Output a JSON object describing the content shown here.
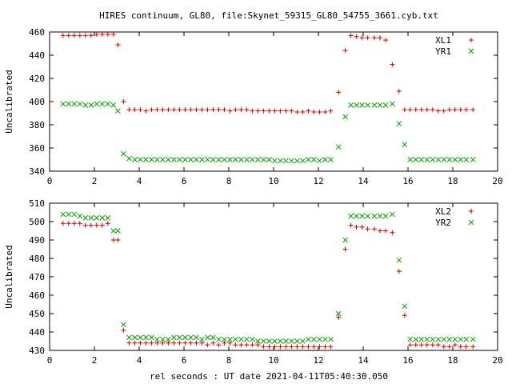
{
  "figure": {
    "title": "HIRES continuum, GL80, file:Skynet_59315_GL80_54755_3661.cyb.txt",
    "xlabel": "rel seconds : UT date 2021-04-11T05:40:30.050"
  },
  "colors": {
    "red": "#cc0000",
    "green": "#00a000",
    "axis": "#000000"
  },
  "chart_data": [
    {
      "type": "scatter",
      "title": "HIRES continuum, GL80, file:Skynet_59315_GL80_54755_3661.cyb.txt",
      "xlabel": "",
      "ylabel": "Uncalibrated",
      "xlim": [
        0,
        20
      ],
      "ylim": [
        340,
        460
      ],
      "xticks": [
        0,
        2,
        4,
        6,
        8,
        10,
        12,
        14,
        16,
        18,
        20
      ],
      "yticks": [
        340,
        360,
        380,
        400,
        420,
        440,
        460
      ],
      "grid": false,
      "legend_position": "top-right",
      "x": [
        0.6,
        0.85,
        1.1,
        1.35,
        1.6,
        1.85,
        2.1,
        2.35,
        2.6,
        2.85,
        3.05,
        3.3,
        3.55,
        3.8,
        4.05,
        4.3,
        4.55,
        4.8,
        5.05,
        5.3,
        5.55,
        5.8,
        6.05,
        6.3,
        6.55,
        6.8,
        7.05,
        7.3,
        7.55,
        7.8,
        8.05,
        8.3,
        8.55,
        8.8,
        9.05,
        9.3,
        9.55,
        9.8,
        10.05,
        10.3,
        10.55,
        10.8,
        11.05,
        11.3,
        11.55,
        11.8,
        12.05,
        12.3,
        12.55,
        12.9,
        13.2,
        13.45,
        13.7,
        13.95,
        14.2,
        14.5,
        14.75,
        15.0,
        15.3,
        15.6,
        15.85,
        16.1,
        16.35,
        16.6,
        16.85,
        17.1,
        17.35,
        17.6,
        17.85,
        18.1,
        18.35,
        18.6,
        18.9
      ],
      "series": [
        {
          "name": "XL1",
          "marker": "plus",
          "color": "#cc0000",
          "values": [
            457,
            457,
            457,
            457,
            457,
            457,
            458,
            458,
            458,
            458,
            449,
            400,
            393,
            393,
            393,
            392,
            393,
            393,
            393,
            393,
            393,
            393,
            393,
            393,
            393,
            393,
            393,
            393,
            393,
            393,
            392,
            393,
            393,
            393,
            392,
            392,
            392,
            392,
            392,
            392,
            392,
            392,
            391,
            391,
            392,
            391,
            391,
            391,
            392,
            408,
            444,
            457,
            456,
            455,
            455,
            455,
            455,
            453,
            432,
            409,
            393,
            393,
            393,
            393,
            393,
            393,
            392,
            392,
            393,
            393,
            393,
            393,
            393
          ]
        },
        {
          "name": "YR1",
          "marker": "cross",
          "color": "#00a000",
          "values": [
            398,
            398,
            398,
            398,
            397,
            397,
            398,
            398,
            398,
            397,
            392,
            355,
            351,
            350,
            350,
            350,
            350,
            350,
            350,
            350,
            350,
            350,
            350,
            350,
            350,
            350,
            350,
            350,
            350,
            350,
            350,
            350,
            350,
            350,
            350,
            350,
            350,
            350,
            349,
            349,
            349,
            349,
            349,
            349,
            350,
            350,
            349,
            350,
            350,
            361,
            387,
            397,
            397,
            397,
            397,
            397,
            397,
            397,
            398,
            381,
            363,
            350,
            350,
            350,
            350,
            350,
            350,
            350,
            350,
            350,
            350,
            350,
            350
          ]
        }
      ]
    },
    {
      "type": "scatter",
      "title": "",
      "xlabel": "rel seconds : UT date 2021-04-11T05:40:30.050",
      "ylabel": "Uncalibrated",
      "xlim": [
        0,
        20
      ],
      "ylim": [
        430,
        510
      ],
      "xticks": [
        0,
        2,
        4,
        6,
        8,
        10,
        12,
        14,
        16,
        18,
        20
      ],
      "yticks": [
        430,
        440,
        450,
        460,
        470,
        480,
        490,
        500,
        510
      ],
      "grid": false,
      "legend_position": "top-right",
      "x": [
        0.6,
        0.85,
        1.1,
        1.35,
        1.6,
        1.85,
        2.1,
        2.35,
        2.6,
        2.85,
        3.05,
        3.3,
        3.55,
        3.8,
        4.05,
        4.3,
        4.55,
        4.8,
        5.05,
        5.3,
        5.55,
        5.8,
        6.05,
        6.3,
        6.55,
        6.8,
        7.05,
        7.3,
        7.55,
        7.8,
        8.05,
        8.3,
        8.55,
        8.8,
        9.05,
        9.3,
        9.55,
        9.8,
        10.05,
        10.3,
        10.55,
        10.8,
        11.05,
        11.3,
        11.55,
        11.8,
        12.05,
        12.3,
        12.55,
        12.9,
        13.2,
        13.45,
        13.7,
        13.95,
        14.2,
        14.5,
        14.75,
        15.0,
        15.3,
        15.6,
        15.85,
        16.1,
        16.35,
        16.6,
        16.85,
        17.1,
        17.35,
        17.6,
        17.85,
        18.1,
        18.35,
        18.6,
        18.9
      ],
      "series": [
        {
          "name": "XL2",
          "marker": "plus",
          "color": "#cc0000",
          "values": [
            499,
            499,
            499,
            499,
            498,
            498,
            498,
            498,
            499,
            490,
            490,
            441,
            434,
            434,
            434,
            434,
            434,
            434,
            434,
            434,
            434,
            434,
            434,
            434,
            434,
            434,
            433,
            434,
            433,
            434,
            434,
            433,
            433,
            433,
            433,
            433,
            432,
            432,
            432,
            432,
            432,
            432,
            432,
            432,
            432,
            432,
            432,
            432,
            432,
            448,
            485,
            498,
            497,
            497,
            496,
            496,
            495,
            495,
            494,
            473,
            449,
            433,
            433,
            433,
            433,
            433,
            433,
            432,
            432,
            433,
            432,
            432,
            432
          ]
        },
        {
          "name": "YR2",
          "marker": "cross",
          "color": "#00a000",
          "values": [
            504,
            504,
            504,
            503,
            502,
            502,
            502,
            502,
            502,
            495,
            495,
            444,
            437,
            437,
            437,
            437,
            437,
            436,
            436,
            436,
            437,
            437,
            437,
            437,
            437,
            436,
            437,
            437,
            436,
            436,
            436,
            436,
            436,
            436,
            436,
            435,
            435,
            435,
            435,
            435,
            435,
            435,
            435,
            435,
            436,
            436,
            436,
            436,
            436,
            450,
            490,
            503,
            503,
            503,
            503,
            503,
            503,
            503,
            504,
            479,
            454,
            436,
            436,
            436,
            436,
            436,
            436,
            436,
            436,
            436,
            436,
            436,
            436
          ]
        }
      ]
    }
  ]
}
